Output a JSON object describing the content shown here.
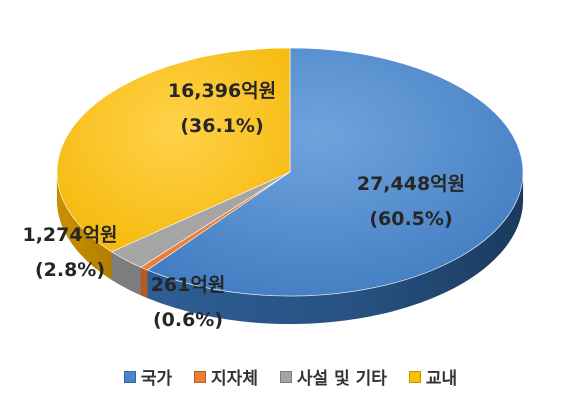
{
  "chart_data": {
    "type": "pie",
    "categories": [
      "국가",
      "지자체",
      "사설 및 기타",
      "교내"
    ],
    "values": [
      27448,
      261,
      1274,
      16396
    ],
    "value_labels": [
      "27,448억원",
      "261억원",
      "1,274억원",
      "16,396억원"
    ],
    "percent_labels": [
      "(60.5%)",
      "(0.6%)",
      "(2.8%)",
      "(36.1%)"
    ],
    "colors": [
      "#4A86CC",
      "#ED7D31",
      "#A5A5A5",
      "#FFC000"
    ],
    "legend_position": "bottom",
    "style": "3d"
  }
}
